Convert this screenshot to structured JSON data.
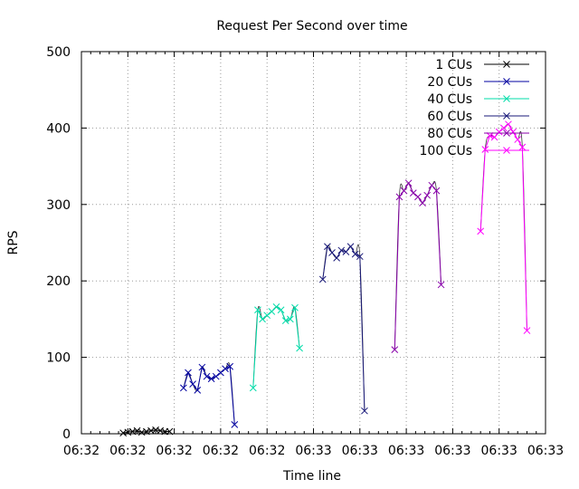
{
  "chart_data": {
    "type": "line",
    "title": "Request Per Second over time",
    "xlabel": "Time line",
    "ylabel": "RPS",
    "ylim": [
      0,
      500
    ],
    "yticks": [
      0,
      100,
      200,
      300,
      400,
      500
    ],
    "xlim": [
      0,
      10
    ],
    "xtick_labels": [
      "06:32",
      "06:32",
      "06:32",
      "06:32",
      "06:32",
      "06:33",
      "06:33",
      "06:33",
      "06:33",
      "06:33",
      "06:33"
    ],
    "grid": true,
    "legend_position": "top-right",
    "marker": "x",
    "series": [
      {
        "name": "1 CUs",
        "color": "#000000",
        "x": [
          0.9,
          1.0,
          1.1,
          1.2,
          1.3,
          1.4,
          1.5,
          1.6,
          1.7,
          1.8,
          1.9
        ],
        "y": [
          1,
          2,
          3,
          4,
          2,
          3,
          4,
          5,
          4,
          3,
          3
        ]
      },
      {
        "name": "20 CUs",
        "color": "#0000a0",
        "x": [
          2.2,
          2.3,
          2.4,
          2.5,
          2.6,
          2.7,
          2.8,
          2.9,
          3.0,
          3.1,
          3.2,
          3.3
        ],
        "y": [
          60,
          80,
          65,
          57,
          87,
          75,
          72,
          75,
          80,
          85,
          88,
          12
        ]
      },
      {
        "name": "40 CUs",
        "color": "#00ddaa",
        "x": [
          3.7,
          3.8,
          3.9,
          4.0,
          4.1,
          4.2,
          4.3,
          4.4,
          4.5,
          4.6,
          4.7
        ],
        "y": [
          60,
          162,
          150,
          155,
          160,
          166,
          162,
          148,
          150,
          165,
          112
        ]
      },
      {
        "name": "60 CUs",
        "color": "#1a1a7a",
        "x": [
          5.2,
          5.3,
          5.4,
          5.5,
          5.6,
          5.7,
          5.8,
          5.9,
          6.0,
          6.1
        ],
        "y": [
          202,
          245,
          237,
          230,
          240,
          238,
          245,
          235,
          232,
          30
        ]
      },
      {
        "name": "80 CUs",
        "color": "#8800aa",
        "x": [
          6.75,
          6.85,
          6.95,
          7.05,
          7.15,
          7.25,
          7.35,
          7.45,
          7.55,
          7.65,
          7.75
        ],
        "y": [
          110,
          310,
          318,
          328,
          315,
          310,
          302,
          312,
          325,
          318,
          195
        ]
      },
      {
        "name": "100 CUs",
        "color": "#ff00ff",
        "x": [
          8.6,
          8.7,
          8.8,
          8.9,
          9.0,
          9.1,
          9.2,
          9.3,
          9.4,
          9.5,
          9.6
        ],
        "y": [
          265,
          372,
          390,
          388,
          395,
          400,
          405,
          395,
          385,
          375,
          135
        ]
      }
    ]
  }
}
